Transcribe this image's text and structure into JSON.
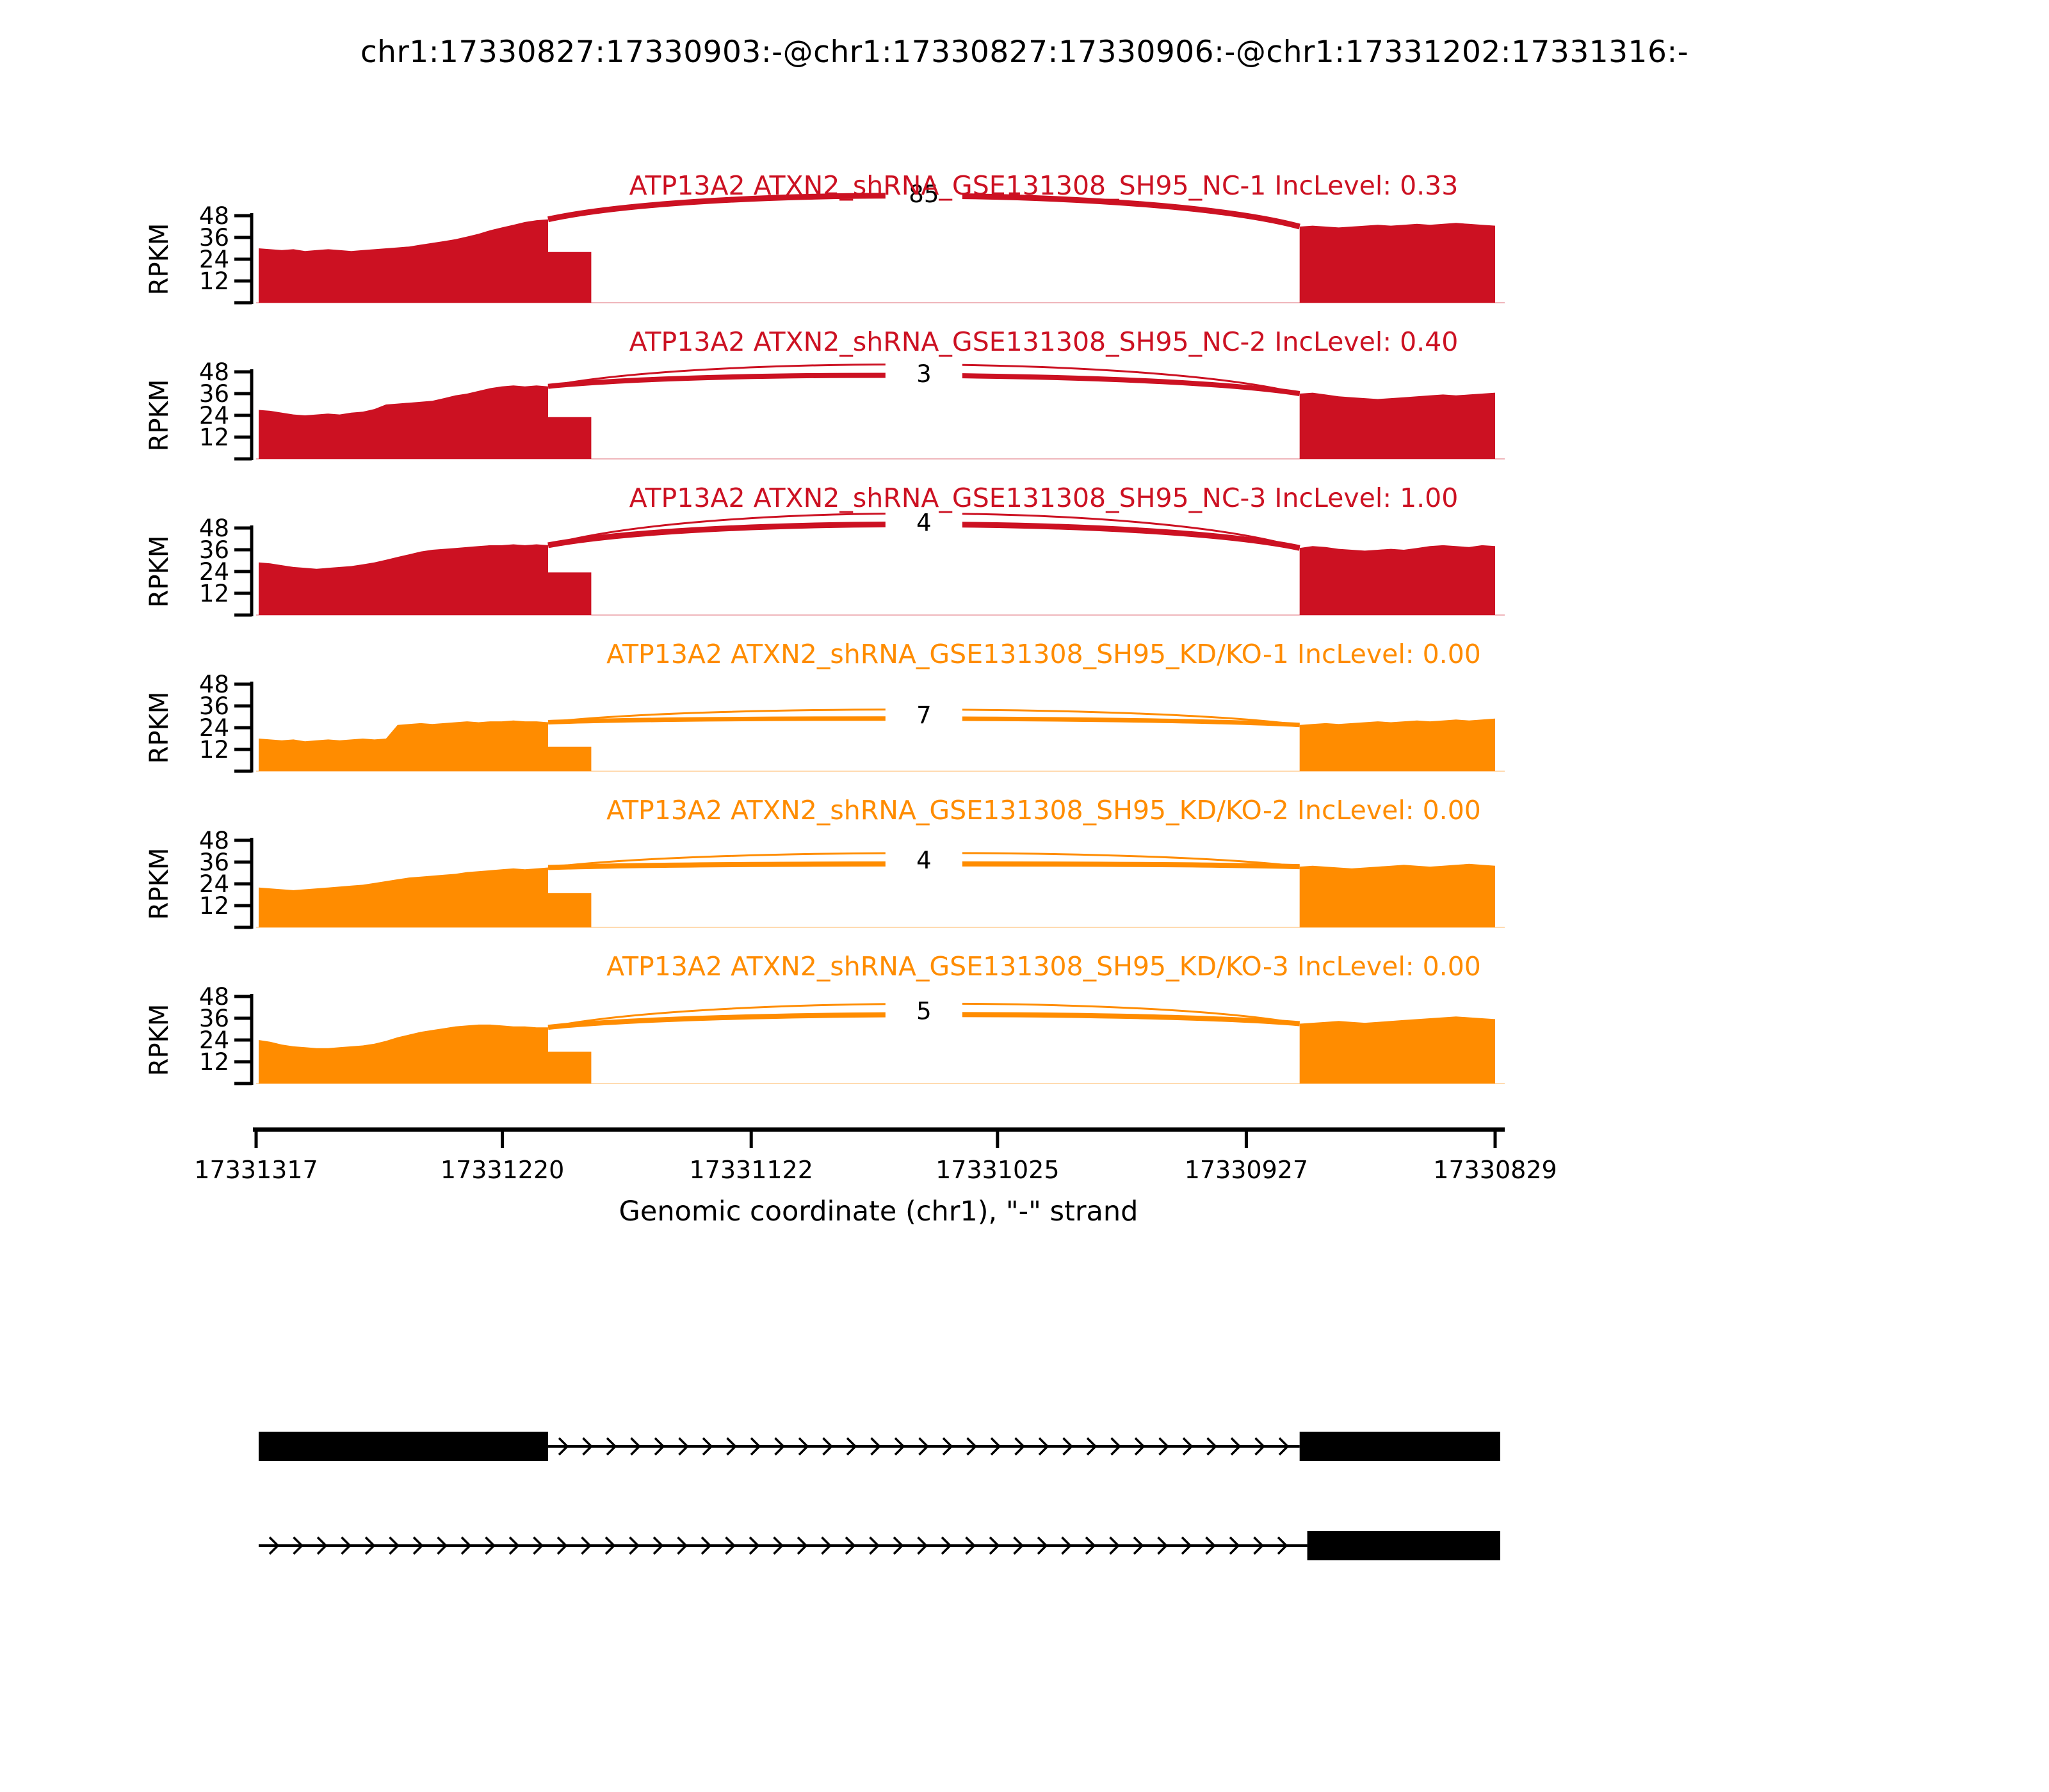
{
  "page": {
    "title": "chr1:17330827:17330903:-@chr1:17330827:17330906:-@chr1:17331202:17331316:-"
  },
  "chart_data": {
    "type": "sashimi",
    "title": "chr1:17330827:17330903:-@chr1:17330827:17330906:-@chr1:17331202:17331316:-",
    "x_axis": {
      "label": "Genomic coordinate (chr1), \"-\" strand",
      "ticks": [
        17331317,
        17331220,
        17331122,
        17331025,
        17330927,
        17330829
      ],
      "domain": [
        17331317,
        17330829
      ],
      "orientation": "reversed-minus-strand"
    },
    "y_axis": {
      "label": "RPKM",
      "ticks": [
        12,
        24,
        36,
        48
      ],
      "max": 62
    },
    "colors": {
      "nc_red": "#CC1122",
      "kd_orange": "#FF8C00",
      "gene_model": "#000000"
    },
    "junction_span": [
      17331202,
      17330906
    ],
    "tracks": [
      {
        "title": "ATP13A2 ATXN2_shRNA_GSE131308_SH95_NC-1 IncLevel: 0.33",
        "color": "#CC1122",
        "junction_reads": 85,
        "label_apex": 60,
        "arcs": [
          {
            "stroke": 9,
            "apex": 59
          }
        ],
        "coverage": {
          "left": {
            "span": [
              17331316,
              17331202
            ],
            "rpkm": [
              30,
              29.5,
              29,
              29.5,
              28.5,
              29,
              29.5,
              29,
              28.5,
              29,
              29.5,
              30,
              30.5,
              31,
              32,
              33,
              34,
              35,
              36.5,
              38,
              40,
              41.5,
              43,
              44.5,
              45.5,
              46
            ]
          },
          "shelf": {
            "span": [
              17331202,
              17331185
            ],
            "rpkm": 28
          },
          "right": {
            "span": [
              17330906,
              17330829
            ],
            "rpkm": [
              42,
              42.5,
              42,
              41.5,
              42,
              42.5,
              43,
              42.5,
              43,
              43.5,
              43,
              43.5,
              44,
              43.5,
              43,
              42.5
            ]
          }
        }
      },
      {
        "title": "ATP13A2 ATXN2_shRNA_GSE131308_SH95_NC-2 IncLevel: 0.40",
        "color": "#CC1122",
        "junction_reads": 3,
        "label_apex": 47,
        "arcs": [
          {
            "stroke": 3,
            "apex": 52
          },
          {
            "stroke": 8,
            "apex": 46
          }
        ],
        "coverage": {
          "left": {
            "span": [
              17331316,
              17331202
            ],
            "rpkm": [
              27,
              26.5,
              25.5,
              24.5,
              24,
              24.5,
              25,
              24.5,
              25.5,
              26,
              27.5,
              30,
              30.5,
              31,
              31.5,
              32,
              33.5,
              35,
              36,
              37.5,
              39,
              40,
              40.5,
              40,
              40.5,
              40
            ]
          },
          "shelf": {
            "span": [
              17331202,
              17331185
            ],
            "rpkm": 23
          },
          "right": {
            "span": [
              17330906,
              17330829
            ],
            "rpkm": [
              36,
              36.5,
              35.5,
              34.5,
              34,
              33.5,
              33,
              33.5,
              34,
              34.5,
              35,
              35.5,
              35,
              35.5,
              36,
              36.5
            ]
          }
        }
      },
      {
        "title": "ATP13A2 ATXN2_shRNA_GSE131308_SH95_NC-3 IncLevel: 1.00",
        "color": "#CC1122",
        "junction_reads": 4,
        "label_apex": 51,
        "arcs": [
          {
            "stroke": 3,
            "apex": 56
          },
          {
            "stroke": 9,
            "apex": 50
          }
        ],
        "coverage": {
          "left": {
            "span": [
              17331316,
              17331202
            ],
            "rpkm": [
              29,
              28.5,
              27.5,
              26.5,
              26,
              25.5,
              26,
              26.5,
              27,
              28,
              29,
              30.5,
              32,
              33.5,
              35,
              36,
              36.5,
              37,
              37.5,
              38,
              38.5,
              38.5,
              39,
              38.5,
              39,
              38.5
            ]
          },
          "shelf": {
            "span": [
              17331202,
              17331185
            ],
            "rpkm": 23.5
          },
          "right": {
            "span": [
              17330906,
              17330829
            ],
            "rpkm": [
              37,
              38,
              37.5,
              36.5,
              36,
              35.5,
              36,
              36.5,
              36,
              37,
              38,
              38.5,
              38,
              37.5,
              38.5,
              38
            ]
          }
        }
      },
      {
        "title": "ATP13A2 ATXN2_shRNA_GSE131308_SH95_KD/KO-1 IncLevel: 0.00",
        "color": "#FF8C00",
        "junction_reads": 7,
        "label_apex": 31,
        "arcs": [
          {
            "stroke": 3,
            "apex": 34
          },
          {
            "stroke": 7,
            "apex": 29
          }
        ],
        "coverage": {
          "left": {
            "span": [
              17331316,
              17331202
            ],
            "rpkm": [
              18,
              17.5,
              17,
              17.5,
              16.5,
              17,
              17.5,
              17,
              17.5,
              18,
              17.5,
              18,
              25.5,
              26,
              26.5,
              26,
              26.5,
              27,
              27.5,
              27,
              27.5,
              27.5,
              28,
              27.5,
              27.5,
              27
            ]
          },
          "shelf": {
            "span": [
              17331202,
              17331185
            ],
            "rpkm": 13.5
          },
          "right": {
            "span": [
              17330906,
              17330829
            ],
            "rpkm": [
              25.5,
              26,
              26.5,
              26,
              26.5,
              27,
              27.5,
              27,
              27.5,
              28,
              27.5,
              28,
              28.5,
              28,
              28.5,
              29
            ]
          }
        }
      },
      {
        "title": "ATP13A2 ATXN2_shRNA_GSE131308_SH95_KD/KO-2 IncLevel: 0.00",
        "color": "#FF8C00",
        "junction_reads": 4,
        "label_apex": 37,
        "arcs": [
          {
            "stroke": 3,
            "apex": 41
          },
          {
            "stroke": 8,
            "apex": 35
          }
        ],
        "coverage": {
          "left": {
            "span": [
              17331316,
              17331202
            ],
            "rpkm": [
              22,
              21.5,
              21,
              20.5,
              21,
              21.5,
              22,
              22.5,
              23,
              23.5,
              24.5,
              25.5,
              26.5,
              27.5,
              28,
              28.5,
              29,
              29.5,
              30.5,
              31,
              31.5,
              32,
              32.5,
              32,
              32.5,
              33
            ]
          },
          "shelf": {
            "span": [
              17331202,
              17331185
            ],
            "rpkm": 19
          },
          "right": {
            "span": [
              17330906,
              17330829
            ],
            "rpkm": [
              33.5,
              34,
              33.5,
              33,
              32.5,
              33,
              33.5,
              34,
              34.5,
              34,
              33.5,
              34,
              34.5,
              35,
              34.5,
              34
            ]
          }
        }
      },
      {
        "title": "ATP13A2 ATXN2_shRNA_GSE131308_SH95_KD/KO-3 IncLevel: 0.00",
        "color": "#FF8C00",
        "junction_reads": 5,
        "label_apex": 40,
        "arcs": [
          {
            "stroke": 3,
            "apex": 44
          },
          {
            "stroke": 8,
            "apex": 38
          }
        ],
        "coverage": {
          "left": {
            "span": [
              17331316,
              17331202
            ],
            "rpkm": [
              24,
              23,
              21.5,
              20.5,
              20,
              19.5,
              19.5,
              20,
              20.5,
              21,
              22,
              23.5,
              25.5,
              27,
              28.5,
              29.5,
              30.5,
              31.5,
              32,
              32.5,
              32.5,
              32,
              31.5,
              31.5,
              31,
              31
            ]
          },
          "shelf": {
            "span": [
              17331202,
              17331185
            ],
            "rpkm": 17.5
          },
          "right": {
            "span": [
              17330906,
              17330829
            ],
            "rpkm": [
              33,
              33.5,
              34,
              34.5,
              34,
              33.5,
              34,
              34.5,
              35,
              35.5,
              36,
              36.5,
              37,
              36.5,
              36,
              35.5
            ]
          }
        }
      }
    ],
    "gene_model": {
      "isoforms": [
        {
          "exons": [
            [
              17331316,
              17331202
            ],
            [
              17330906,
              17330827
            ]
          ],
          "line": [
            17331202,
            17330906
          ]
        },
        {
          "exons": [
            [
              17330903,
              17330827
            ]
          ],
          "line": [
            17331316,
            17330903
          ]
        }
      ]
    }
  }
}
